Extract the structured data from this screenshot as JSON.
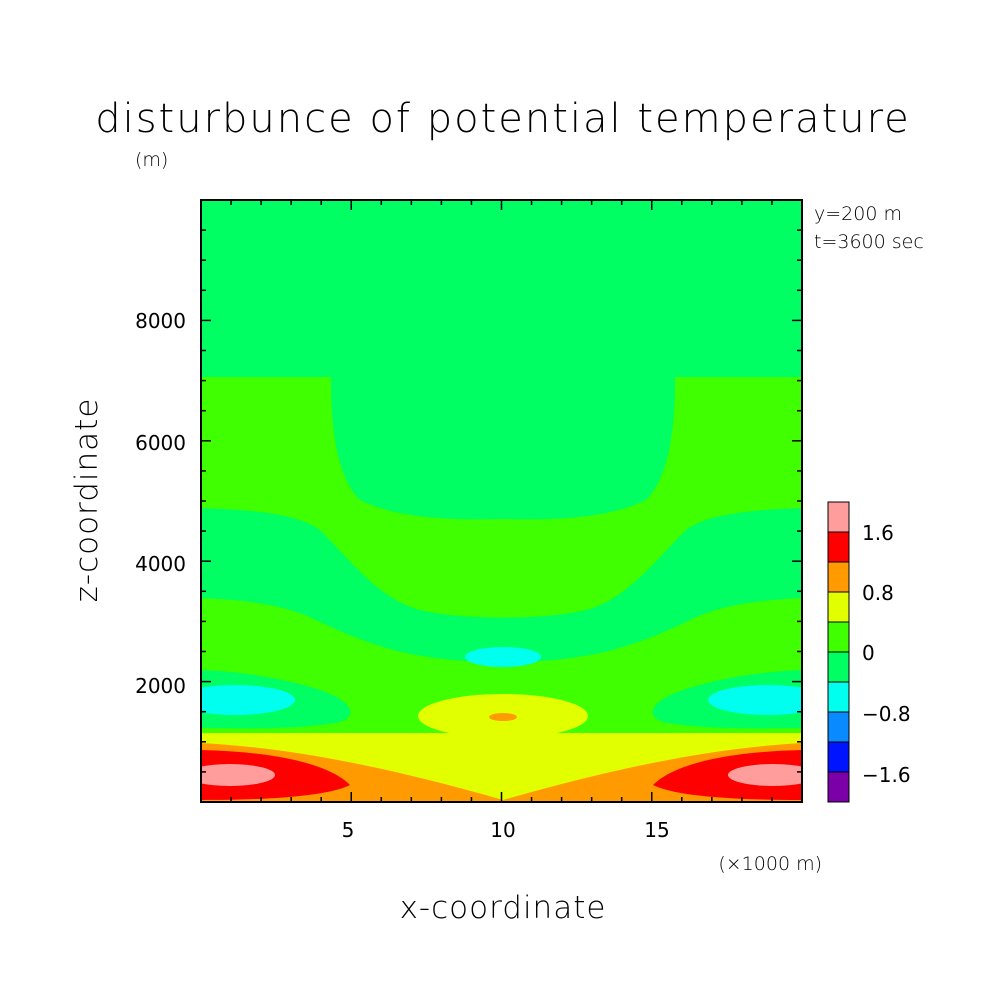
{
  "chart_data": {
    "type": "heatmap",
    "subtype": "filled-contour",
    "title": "disturbunce of potential temperature",
    "xlabel": "x-coordinate",
    "ylabel": "z-coordinate",
    "x_unit": "(×1000 m)",
    "y_unit": "(m)",
    "xlim": [
      0,
      20
    ],
    "ylim": [
      0,
      10000
    ],
    "x_ticks": [
      "5",
      "10",
      "15"
    ],
    "x_tick_values": [
      5,
      10,
      15
    ],
    "y_ticks": [
      "2000",
      "4000",
      "6000",
      "8000"
    ],
    "y_tick_values": [
      2000,
      4000,
      6000,
      8000
    ],
    "annotations": [
      "y=200 m",
      "t=3600 sec"
    ],
    "colorbar": {
      "labels": [
        "1.6",
        "0.8",
        "0",
        "−0.8",
        "−1.6"
      ],
      "label_values": [
        1.6,
        0.8,
        0,
        -0.8,
        -1.6
      ],
      "levels": [
        -2.0,
        -1.6,
        -1.2,
        -0.8,
        -0.4,
        0,
        0.4,
        0.8,
        1.2,
        1.6,
        2.0
      ],
      "colors": [
        "#7b00a8",
        "#0014ff",
        "#0a8aff",
        "#00ffee",
        "#00ff62",
        "#3fff00",
        "#e2ff00",
        "#ff9a00",
        "#ff0000",
        "#ff9d9d"
      ]
    },
    "regions": [
      {
        "level": "0 to 0.4",
        "color": "#3fff00",
        "description": "background of upper domain and layered bands"
      },
      {
        "level": "-0.4 to 0",
        "color": "#00ff62",
        "description": "central column above ~7000 m and lobed bands"
      },
      {
        "level": "-0.8 to -0.4",
        "color": "#00ffee",
        "description": "small cells near z~1600-2500 m"
      },
      {
        "level": "0.4 to 0.8",
        "color": "#e2ff00",
        "description": "low-level band and central blob near z~1500 m"
      },
      {
        "level": "0.8 to 1.2",
        "color": "#ff9a00",
        "description": "near-surface layer"
      },
      {
        "level": "1.2 to 1.6",
        "color": "#ff0000",
        "description": "surface maxima near domain edges"
      },
      {
        "level": "> 1.6",
        "color": "#ff9d9d",
        "description": "cores of surface maxima at x~1-3 and ~17-19"
      }
    ]
  }
}
